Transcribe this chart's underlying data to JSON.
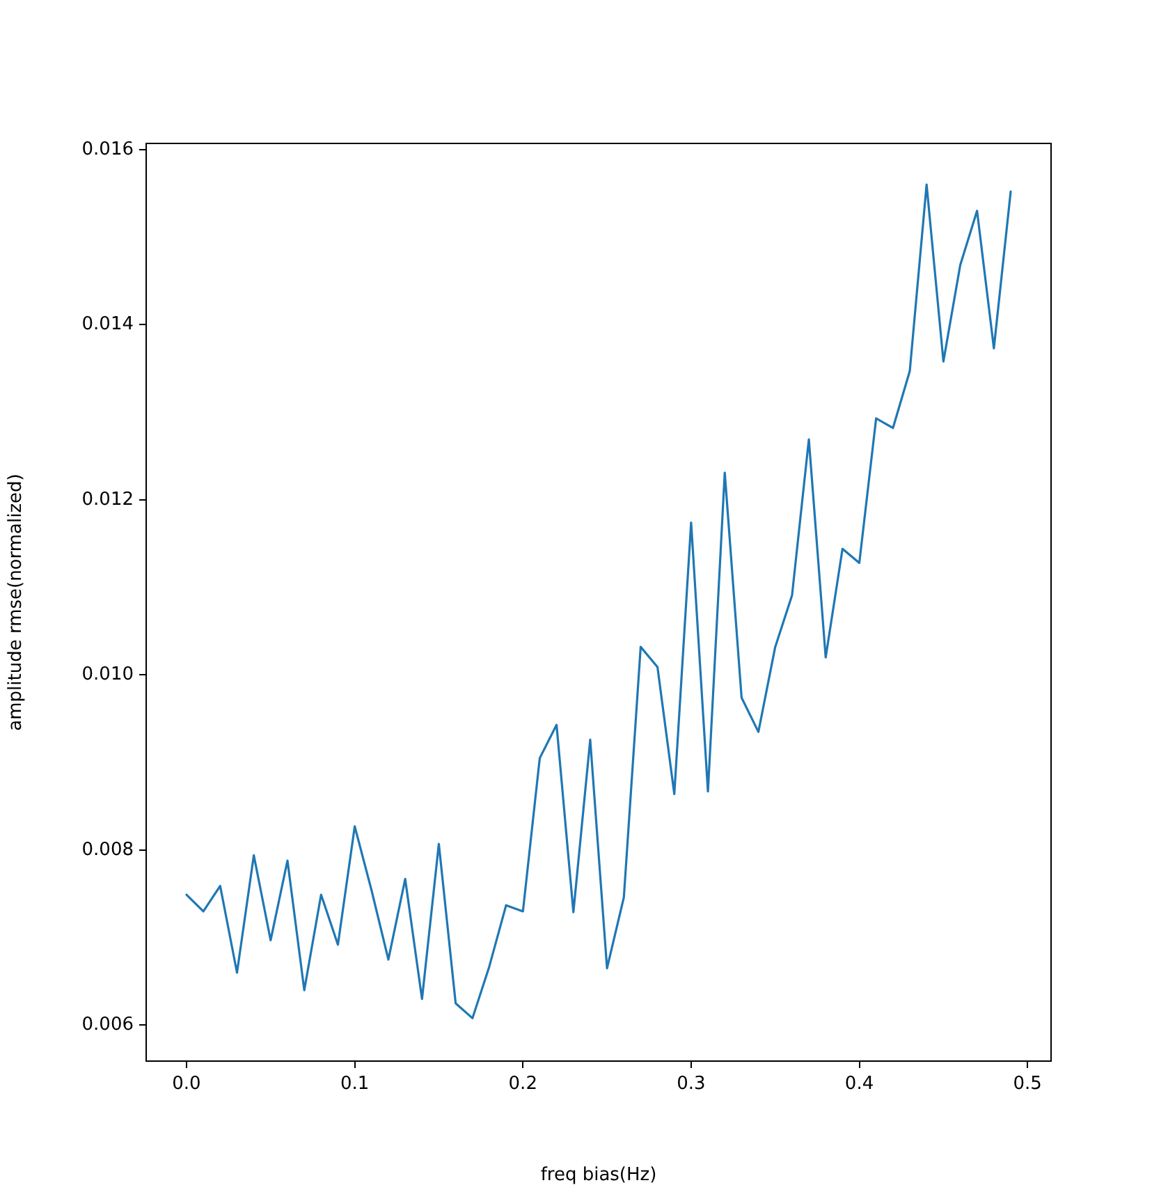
{
  "chart_data": {
    "type": "line",
    "xlabel": "freq bias(Hz)",
    "ylabel": "amplitude rmse(normalized)",
    "x": [
      0,
      0.01,
      0.02,
      0.03,
      0.04,
      0.05,
      0.06,
      0.07,
      0.08,
      0.09,
      0.1,
      0.11,
      0.12,
      0.13,
      0.14,
      0.15,
      0.16,
      0.17,
      0.18,
      0.19,
      0.2,
      0.21,
      0.22,
      0.23,
      0.24,
      0.25,
      0.26,
      0.27,
      0.28,
      0.29,
      0.3,
      0.31,
      0.32,
      0.33,
      0.34,
      0.35,
      0.36,
      0.37,
      0.38,
      0.39,
      0.4,
      0.41,
      0.42,
      0.43,
      0.44,
      0.45,
      0.46,
      0.47,
      0.48,
      0.49
    ],
    "series": [
      {
        "color": "#1f77b4",
        "values": [
          0.00749,
          0.0073,
          0.00759,
          0.0066,
          0.00794,
          0.00697,
          0.00788,
          0.0064,
          0.00749,
          0.00692,
          0.00827,
          0.00754,
          0.00675,
          0.00767,
          0.0063,
          0.00807,
          0.00625,
          0.00608,
          0.00667,
          0.00737,
          0.0073,
          0.00905,
          0.00943,
          0.00729,
          0.00926,
          0.00665,
          0.00746,
          0.01032,
          0.01009,
          0.00864,
          0.01174,
          0.00867,
          0.01231,
          0.00974,
          0.00935,
          0.01032,
          0.01091,
          0.01269,
          0.0102,
          0.01144,
          0.01128,
          0.01293,
          0.01282,
          0.01347,
          0.0156,
          0.01358,
          0.01468,
          0.0153,
          0.01373,
          0.01552
        ]
      }
    ],
    "xlim": [
      -0.024,
      0.514
    ],
    "xticks": [
      {
        "value": 0,
        "label": "0.0"
      },
      {
        "value": 0.1,
        "label": "0.1"
      },
      {
        "value": 0.2,
        "label": "0.2"
      },
      {
        "value": 0.3,
        "label": "0.3"
      },
      {
        "value": 0.4,
        "label": "0.4"
      },
      {
        "value": 0.5,
        "label": "0.5"
      }
    ],
    "ylim": [
      0.00559,
      0.01607
    ],
    "yticks": [
      {
        "value": 0.006,
        "label": "0.006"
      },
      {
        "value": 0.008,
        "label": "0.008"
      },
      {
        "value": 0.01,
        "label": "0.010"
      },
      {
        "value": 0.012,
        "label": "0.012"
      },
      {
        "value": 0.014,
        "label": "0.014"
      },
      {
        "value": 0.016,
        "label": "0.016"
      }
    ],
    "grid": false,
    "legend": false,
    "marker": "none",
    "line_style": "solid"
  }
}
